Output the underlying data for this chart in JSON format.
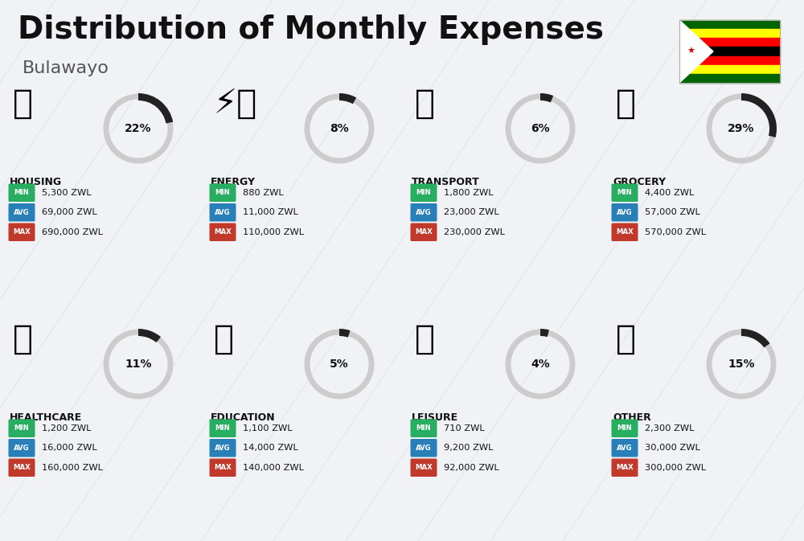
{
  "title": "Distribution of Monthly Expenses",
  "subtitle": "Bulawayo",
  "background_color": "#f0f2f5",
  "title_fontsize": 28,
  "subtitle_fontsize": 16,
  "categories": [
    {
      "name": "HOUSING",
      "percent": 22,
      "min": "5,300 ZWL",
      "avg": "69,000 ZWL",
      "max": "690,000 ZWL",
      "row": 0,
      "col": 0
    },
    {
      "name": "ENERGY",
      "percent": 8,
      "min": "880 ZWL",
      "avg": "11,000 ZWL",
      "max": "110,000 ZWL",
      "row": 0,
      "col": 1
    },
    {
      "name": "TRANSPORT",
      "percent": 6,
      "min": "1,800 ZWL",
      "avg": "23,000 ZWL",
      "max": "230,000 ZWL",
      "row": 0,
      "col": 2
    },
    {
      "name": "GROCERY",
      "percent": 29,
      "min": "4,400 ZWL",
      "avg": "57,000 ZWL",
      "max": "570,000 ZWL",
      "row": 0,
      "col": 3
    },
    {
      "name": "HEALTHCARE",
      "percent": 11,
      "min": "1,200 ZWL",
      "avg": "16,000 ZWL",
      "max": "160,000 ZWL",
      "row": 1,
      "col": 0
    },
    {
      "name": "EDUCATION",
      "percent": 5,
      "min": "1,100 ZWL",
      "avg": "14,000 ZWL",
      "max": "140,000 ZWL",
      "row": 1,
      "col": 1
    },
    {
      "name": "LEISURE",
      "percent": 4,
      "min": "710 ZWL",
      "avg": "9,200 ZWL",
      "max": "92,000 ZWL",
      "row": 1,
      "col": 2
    },
    {
      "name": "OTHER",
      "percent": 15,
      "min": "2,300 ZWL",
      "avg": "30,000 ZWL",
      "max": "300,000 ZWL",
      "row": 1,
      "col": 3
    }
  ],
  "min_color": "#27ae60",
  "avg_color": "#2980b9",
  "max_color": "#c0392b",
  "arc_color": "#222222",
  "arc_bg_color": "#cccccc",
  "label_color": "#111111",
  "flag_colors": [
    "#006400",
    "#ffff00",
    "#ff0000",
    "#000000",
    "#ff0000",
    "#ffff00",
    "#006400"
  ],
  "diag_line_color": "#d8dce0"
}
